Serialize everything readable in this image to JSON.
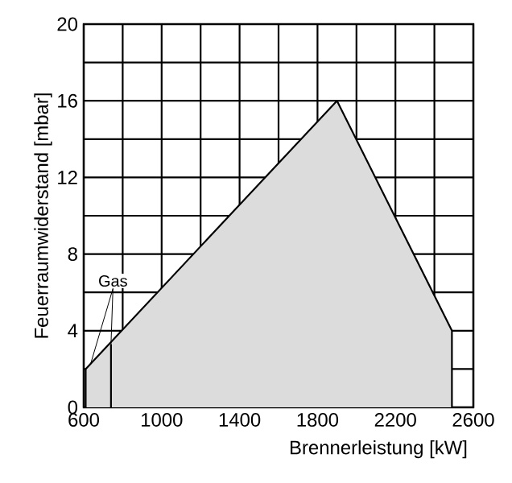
{
  "chart_data": {
    "type": "area",
    "xlabel": "Brennerleistung  [kW]",
    "ylabel": "Feuerraumwiderstand [mbar]",
    "xlim": [
      600,
      2600
    ],
    "ylim": [
      0,
      20
    ],
    "xticks": [
      600,
      {
        "value": 800,
        "label": null
      },
      1000,
      {
        "value": 1200,
        "label": null
      },
      1400,
      {
        "value": 1600,
        "label": null
      },
      1800,
      {
        "value": 2000,
        "label": null
      },
      2200,
      {
        "value": 2400,
        "label": null
      },
      2600
    ],
    "yticks": [
      0,
      {
        "value": 2,
        "label": null
      },
      4,
      {
        "value": 6,
        "label": null
      },
      8,
      {
        "value": 10,
        "label": null
      },
      12,
      {
        "value": 14,
        "label": null
      },
      16,
      {
        "value": 18,
        "label": null
      },
      20
    ],
    "grid": true,
    "annotations": [
      {
        "text": "Gas",
        "x": 740,
        "y": 3.3
      }
    ],
    "series": [
      {
        "color": "#dcdcdc",
        "x": [
          610,
          610,
          1900,
          2490,
          2490
        ],
        "values": [
          0,
          2,
          16,
          4,
          0
        ]
      },
      {
        "type": "line",
        "color": "#000000",
        "x": [
          740,
          740
        ],
        "values": [
          0,
          3.3
        ]
      }
    ]
  }
}
